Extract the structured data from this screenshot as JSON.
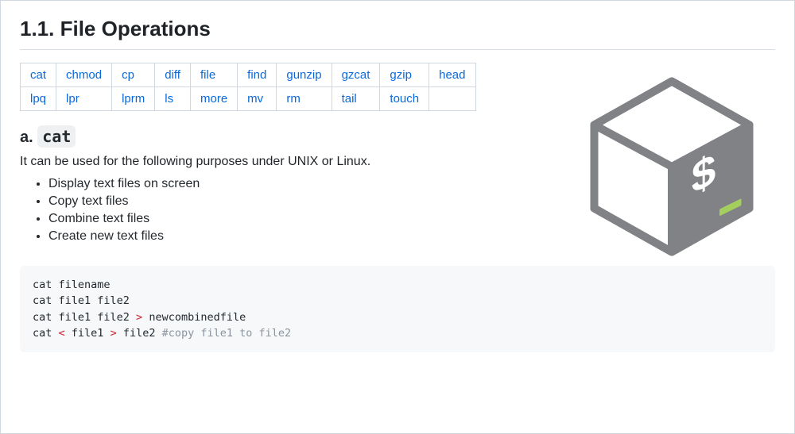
{
  "heading": "1.1. File Operations",
  "table": {
    "rows": [
      [
        "cat",
        "chmod",
        "cp",
        "diff",
        "file",
        "find",
        "gunzip",
        "gzcat",
        "gzip",
        "head"
      ],
      [
        "lpq",
        "lpr",
        "lprm",
        "ls",
        "more",
        "mv",
        "rm",
        "tail",
        "touch",
        ""
      ]
    ]
  },
  "section": {
    "prefix": "a. ",
    "code": "cat",
    "description": "It can be used for the following purposes under UNIX or Linux.",
    "bullets": [
      "Display text files on screen",
      "Copy text files",
      "Combine text files",
      "Create new text files"
    ],
    "code_lines": [
      {
        "parts": [
          {
            "t": "cat filename",
            "c": ""
          }
        ]
      },
      {
        "parts": [
          {
            "t": "cat file1 file2",
            "c": ""
          }
        ]
      },
      {
        "parts": [
          {
            "t": "cat file1 file2 ",
            "c": ""
          },
          {
            "t": ">",
            "c": "op"
          },
          {
            "t": " newcombinedfile",
            "c": ""
          }
        ]
      },
      {
        "parts": [
          {
            "t": "cat ",
            "c": ""
          },
          {
            "t": "<",
            "c": "op"
          },
          {
            "t": " file1 ",
            "c": ""
          },
          {
            "t": ">",
            "c": "op"
          },
          {
            "t": " file2 ",
            "c": ""
          },
          {
            "t": "#copy file1 to file2",
            "c": "comment"
          }
        ]
      }
    ]
  },
  "link_color": "#0969da",
  "icon": {
    "outline": "#808285",
    "face_dark": "#808285",
    "face_light": "#ffffff",
    "dollar": "#ffffff",
    "underscore": "#a4cf5f"
  }
}
